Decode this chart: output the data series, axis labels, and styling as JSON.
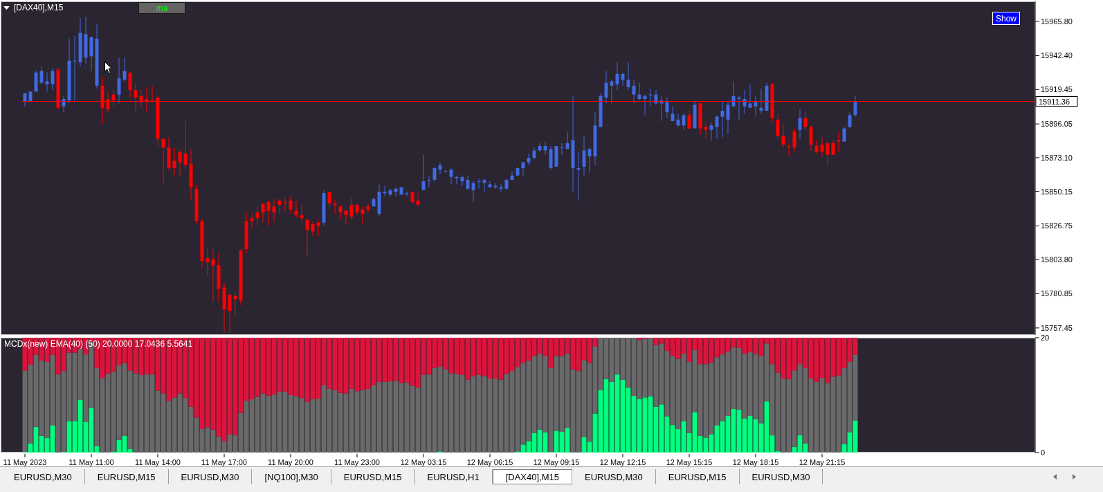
{
  "chart_data": [
    {
      "type": "candlestick",
      "title": "[DAX40],M15",
      "tick_labels": "y",
      "categories": [
        null,
        null,
        null,
        null,
        null,
        null,
        null,
        null,
        null,
        null,
        null,
        null,
        null,
        null,
        null,
        null,
        null,
        null,
        null,
        null,
        null,
        null,
        null,
        null,
        null,
        null,
        null,
        null,
        null,
        null,
        null,
        null,
        null,
        null,
        null,
        null,
        null,
        null,
        null,
        null,
        null,
        null,
        null,
        null,
        null,
        null,
        null,
        null,
        null,
        null,
        null,
        null,
        null,
        null,
        null,
        null,
        null,
        null,
        null,
        null,
        null,
        null,
        null,
        null,
        null,
        null,
        null,
        null,
        null,
        null,
        null,
        null,
        null,
        null,
        null,
        null,
        null,
        null,
        null,
        null,
        null,
        null,
        null,
        null,
        null,
        null,
        null,
        null,
        null,
        null,
        null,
        null,
        null,
        null,
        null,
        null,
        null,
        null,
        null,
        null,
        null,
        null,
        null,
        null,
        null,
        null,
        null,
        null,
        null,
        null,
        null,
        null,
        null,
        null,
        null,
        null,
        null,
        null,
        null,
        null,
        null,
        null,
        null,
        null,
        null,
        null,
        null,
        null,
        null,
        null,
        null,
        null,
        null,
        null,
        null,
        null,
        null,
        null,
        null,
        null,
        null,
        null,
        null,
        null,
        null,
        null,
        null,
        null,
        null,
        null,
        null,
        null,
        null,
        null,
        null,
        null,
        null,
        null,
        null,
        null,
        null,
        null,
        null,
        null,
        null,
        null,
        null,
        null,
        null,
        null,
        null,
        null,
        null,
        null,
        null,
        null,
        null,
        null,
        null,
        null,
        null,
        null,
        null
      ],
      "ohlc": [
        [
          15911,
          15917,
          15908,
          15917
        ],
        [
          15911,
          15918,
          15911,
          15918
        ],
        [
          15918,
          15932,
          15918,
          15931
        ],
        [
          15924,
          15935,
          15923,
          15932
        ],
        [
          15923,
          15931,
          15918,
          15925
        ],
        [
          15923,
          15934,
          15919,
          15932
        ],
        [
          15933,
          15934,
          15906,
          15907
        ],
        [
          15908,
          15915,
          15904,
          15913
        ],
        [
          15912,
          15954,
          15910,
          15939
        ],
        [
          15939,
          15956,
          15911,
          15939
        ],
        [
          15938,
          15968,
          15935,
          15958
        ],
        [
          15941,
          15969,
          15937,
          15957
        ],
        [
          15942,
          15955,
          15932,
          15955
        ],
        [
          15922,
          15964,
          15920,
          15954
        ],
        [
          15922,
          15928,
          15896,
          15907
        ],
        [
          15913,
          15918,
          15904,
          15906
        ],
        [
          15916,
          15920,
          15908,
          15912
        ],
        [
          15916,
          15941,
          15910,
          15927
        ],
        [
          15926,
          15941,
          15925,
          15932
        ],
        [
          15931,
          15931,
          15914,
          15919
        ],
        [
          15919,
          15924,
          15904,
          15914
        ],
        [
          15915,
          15919,
          15908,
          15911
        ],
        [
          15913,
          15921,
          15904,
          15911
        ],
        [
          15912,
          15922,
          15911,
          15912
        ],
        [
          15914,
          15916,
          15881,
          15886
        ],
        [
          15886,
          15886,
          15855,
          15880
        ],
        [
          15880,
          15887,
          15865,
          15866
        ],
        [
          15871,
          15880,
          15861,
          15866
        ],
        [
          15877,
          15879,
          15860,
          15870
        ],
        [
          15876,
          15898,
          15865,
          15868
        ],
        [
          15869,
          15879,
          15844,
          15853
        ],
        [
          15852,
          15855,
          15828,
          15830
        ],
        [
          15830,
          15832,
          15799,
          15803
        ],
        [
          15805,
          15812,
          15793,
          15802
        ],
        [
          15804,
          15811,
          15775,
          15800
        ],
        [
          15800,
          15808,
          15775,
          15784
        ],
        [
          15785,
          15788,
          15755,
          15770
        ],
        [
          15780,
          15781,
          15754,
          15769
        ],
        [
          15779,
          15782,
          15766,
          15777
        ],
        [
          15810,
          15811,
          15773,
          15776
        ],
        [
          15830,
          15836,
          15808,
          15811
        ],
        [
          15832,
          15835,
          15825,
          15830
        ],
        [
          15836,
          15840,
          15827,
          15832
        ],
        [
          15842,
          15842,
          15829,
          15836
        ],
        [
          15843,
          15844,
          15827,
          15837
        ],
        [
          15840,
          15845,
          15829,
          15836
        ],
        [
          15844,
          15845,
          15835,
          15841
        ],
        [
          15843,
          15846,
          15837,
          15843
        ],
        [
          15844,
          15847,
          15835,
          15838
        ],
        [
          15837,
          15844,
          15832,
          15834
        ],
        [
          15834,
          15841,
          15829,
          15832
        ],
        [
          15831,
          15831,
          15806,
          15824
        ],
        [
          15828,
          15830,
          15820,
          15823
        ],
        [
          15829,
          15831,
          15820,
          15827
        ],
        [
          15829,
          15851,
          15827,
          15849
        ],
        [
          15850,
          15850,
          15838,
          15842
        ],
        [
          15842,
          15845,
          15835,
          15841
        ],
        [
          15840,
          15841,
          15831,
          15836
        ],
        [
          15837,
          15838,
          15828,
          15834
        ],
        [
          15841,
          15846,
          15831,
          15833
        ],
        [
          15841,
          15842,
          15834,
          15836
        ],
        [
          15838,
          15840,
          15828,
          15835
        ],
        [
          15840,
          15842,
          15836,
          15838
        ],
        [
          15840,
          15846,
          15840,
          15845
        ],
        [
          15835,
          15855,
          15833,
          15850
        ],
        [
          15849,
          15854,
          15847,
          15850
        ],
        [
          15848,
          15852,
          15847,
          15851
        ],
        [
          15850,
          15853,
          15847,
          15852
        ],
        [
          15848,
          15853,
          15848,
          15853
        ],
        [
          15849,
          15850,
          15847,
          15849
        ],
        [
          15850,
          15850,
          15842,
          15843
        ],
        [
          15844,
          15849,
          15841,
          15841
        ],
        [
          15851,
          15875,
          15851,
          15857
        ],
        [
          15858,
          15861,
          15853,
          15858
        ],
        [
          15858,
          15867,
          15857,
          15866
        ],
        [
          15865,
          15870,
          15862,
          15868
        ],
        [
          15864,
          15865,
          15863,
          15864
        ],
        [
          15860,
          15866,
          15855,
          15865
        ],
        [
          15859,
          15861,
          15855,
          15860
        ],
        [
          15857,
          15861,
          15854,
          15860
        ],
        [
          15852,
          15861,
          15851,
          15858
        ],
        [
          15851,
          15857,
          15843,
          15856
        ],
        [
          15857,
          15859,
          15852,
          15857
        ],
        [
          15856,
          15859,
          15850,
          15858
        ],
        [
          15853,
          15857,
          15853,
          15855
        ],
        [
          15853,
          15856,
          15852,
          15854
        ],
        [
          15852,
          15855,
          15850,
          15853
        ],
        [
          15852,
          15859,
          15851,
          15858
        ],
        [
          15858,
          15864,
          15858,
          15861
        ],
        [
          15861,
          15867,
          15861,
          15866
        ],
        [
          15866,
          15870,
          15861,
          15870
        ],
        [
          15870,
          15876,
          15868,
          15873
        ],
        [
          15873,
          15880,
          15872,
          15878
        ],
        [
          15878,
          15883,
          15877,
          15881
        ],
        [
          15878,
          15884,
          15875,
          15881
        ],
        [
          15866,
          15881,
          15865,
          15879
        ],
        [
          15867,
          15881,
          15867,
          15881
        ],
        [
          15880,
          15883,
          15875,
          15880
        ],
        [
          15879,
          15891,
          15879,
          15883
        ],
        [
          15866,
          15915,
          15850,
          15885
        ],
        [
          15865,
          15877,
          15844,
          15866
        ],
        [
          15867,
          15888,
          15861,
          15878
        ],
        [
          15874,
          15880,
          15863,
          15879
        ],
        [
          15874,
          15904,
          15868,
          15895
        ],
        [
          15894,
          15917,
          15894,
          15915
        ],
        [
          15914,
          15932,
          15910,
          15924
        ],
        [
          15922,
          15926,
          15910,
          15925
        ],
        [
          15923,
          15938,
          15919,
          15930
        ],
        [
          15926,
          15931,
          15922,
          15930
        ],
        [
          15921,
          15938,
          15919,
          15926
        ],
        [
          15916,
          15926,
          15910,
          15922
        ],
        [
          15913,
          15924,
          15912,
          15916
        ],
        [
          15913,
          15916,
          15902,
          15915
        ],
        [
          15916,
          15920,
          15908,
          15916
        ],
        [
          15910,
          15919,
          15909,
          15916
        ],
        [
          15910,
          15915,
          15898,
          15912
        ],
        [
          15904,
          15914,
          15900,
          15911
        ],
        [
          15898,
          15908,
          15898,
          15903
        ],
        [
          15895,
          15903,
          15894,
          15899
        ],
        [
          15895,
          15903,
          15892,
          15902
        ],
        [
          15902,
          15905,
          15892,
          15893
        ],
        [
          15893,
          15912,
          15893,
          15909
        ],
        [
          15910,
          15911,
          15889,
          15893
        ],
        [
          15894,
          15897,
          15886,
          15892
        ],
        [
          15892,
          15897,
          15885,
          15895
        ],
        [
          15894,
          15902,
          15886,
          15901
        ],
        [
          15901,
          15912,
          15887,
          15905
        ],
        [
          15899,
          15911,
          15889,
          15909
        ],
        [
          15908,
          15925,
          15907,
          15915
        ],
        [
          15913,
          15915,
          15899,
          15914
        ],
        [
          15908,
          15919,
          15903,
          15913
        ],
        [
          15907,
          15923,
          15907,
          15910
        ],
        [
          15908,
          15915,
          15901,
          15911
        ],
        [
          15905,
          15920,
          15903,
          15907
        ],
        [
          15905,
          15924,
          15905,
          15922
        ],
        [
          15923,
          15924,
          15897,
          15900
        ],
        [
          15899,
          15903,
          15886,
          15888
        ],
        [
          15888,
          15896,
          15880,
          15882
        ],
        [
          15881,
          15883,
          15874,
          15881
        ],
        [
          15891,
          15893,
          15877,
          15880
        ],
        [
          15892,
          15906,
          15886,
          15900
        ],
        [
          15900,
          15904,
          15892,
          15894
        ],
        [
          15894,
          15895,
          15878,
          15882
        ],
        [
          15881,
          15885,
          15876,
          15877
        ],
        [
          15882,
          15887,
          15874,
          15877
        ],
        [
          15883,
          15884,
          15868,
          15875
        ],
        [
          15883,
          15885,
          15875,
          15875
        ],
        [
          15885,
          15891,
          15877,
          15884
        ],
        [
          15884,
          15894,
          15884,
          15893
        ],
        [
          15894,
          15904,
          15893,
          15902
        ],
        [
          15902,
          15915,
          15901,
          15911
        ],
        null,
        null,
        null,
        null,
        null,
        null,
        null,
        null,
        null,
        null,
        null,
        null,
        null,
        null,
        null,
        null,
        null,
        null,
        null,
        null,
        null,
        null,
        null,
        null,
        null,
        null,
        null,
        null,
        null,
        null,
        null,
        null
      ],
      "colors": [
        "#4169e1",
        "#4169e1",
        "#4169e1",
        "#4169e1",
        "#4169e1",
        "#4169e1",
        "#ff0000",
        "#4169e1",
        "#4169e1",
        "#4169e1",
        "#4169e1",
        "#4169e1",
        "#4169e1",
        "#4169e1",
        "#ff0000",
        "#ff0000",
        "#ff0000",
        "#4169e1",
        "#4169e1",
        "#ff0000",
        "#ff0000",
        "#ff0000",
        "#ff0000",
        "#ff0000",
        "#ff0000",
        "#ff0000",
        "#ff0000",
        "#ff0000",
        "#ff0000",
        "#ff0000",
        "#ff0000",
        "#ff0000",
        "#ff0000",
        "#ff0000",
        "#ff0000",
        "#ff0000",
        "#ff0000",
        "#ff0000",
        "#ff0000",
        "#ff0000",
        "#ff0000",
        "#ff0000",
        "#ff0000",
        "#ff0000",
        "#ff0000",
        "#ff0000",
        "#ff0000",
        "#ff0000",
        "#ff0000",
        "#ff0000",
        "#ff0000",
        "#ff0000",
        "#ff0000",
        "#ff0000",
        "#4169e1",
        "#ff0000",
        "#ff0000",
        "#ff0000",
        "#ff0000",
        "#ff0000",
        "#ff0000",
        "#ff0000",
        "#ff0000",
        "#4169e1",
        "#4169e1",
        "#4169e1",
        "#4169e1",
        "#4169e1",
        "#4169e1",
        "#4169e1",
        "#ff0000",
        "#ff0000",
        "#4169e1",
        "#4169e1",
        "#4169e1",
        "#4169e1",
        "#4169e1",
        "#4169e1",
        "#4169e1",
        "#4169e1",
        "#4169e1",
        "#4169e1",
        "#4169e1",
        "#4169e1",
        "#4169e1",
        "#4169e1",
        "#4169e1",
        "#4169e1",
        "#4169e1",
        "#4169e1",
        "#4169e1",
        "#4169e1",
        "#4169e1",
        "#4169e1",
        "#4169e1",
        "#4169e1",
        "#4169e1",
        "#4169e1",
        "#4169e1",
        "#4169e1",
        "#4169e1",
        "#4169e1",
        "#4169e1",
        "#4169e1",
        "#4169e1",
        "#4169e1",
        "#4169e1",
        "#4169e1",
        "#4169e1",
        "#4169e1",
        "#4169e1",
        "#4169e1",
        "#4169e1",
        "#4169e1",
        "#4169e1",
        "#4169e1",
        "#4169e1",
        "#4169e1",
        "#4169e1",
        "#4169e1",
        "#ff0000",
        "#4169e1",
        "#ff0000",
        "#ff0000",
        "#4169e1",
        "#4169e1",
        "#4169e1",
        "#4169e1",
        "#4169e1",
        "#4169e1",
        "#4169e1",
        "#4169e1",
        "#4169e1",
        "#4169e1",
        "#4169e1",
        "#ff0000",
        "#ff0000",
        "#ff0000",
        "#ff0000",
        "#ff0000",
        "#4169e1",
        "#ff0000",
        "#ff0000",
        "#ff0000",
        "#ff0000",
        "#ff0000",
        "#ff0000",
        "#ff0000",
        "#4169e1",
        "#4169e1",
        "#4169e1",
        null,
        null,
        null,
        null,
        null,
        null,
        null,
        null,
        null,
        null,
        null,
        null,
        null,
        null,
        null,
        null,
        null,
        null,
        null,
        null,
        null,
        null,
        null,
        null,
        null,
        null,
        null,
        null,
        null,
        null,
        null,
        null
      ],
      "ylim": [
        15752.7,
        15979.3
      ],
      "yticks": [
        {
          "value": 15757.45,
          "label": "15757.45"
        },
        {
          "value": 15780.85,
          "label": "15780.85"
        },
        {
          "value": 15803.8,
          "label": "15803.80"
        },
        {
          "value": 15826.75,
          "label": "15826.75"
        },
        {
          "value": 15850.15,
          "label": "15850.15"
        },
        {
          "value": 15873.1,
          "label": "15873.10"
        },
        {
          "value": 15896.05,
          "label": "15896.05"
        },
        {
          "value": 15919.45,
          "label": "15919.45"
        },
        {
          "value": 15942.4,
          "label": "15942.40"
        },
        {
          "value": 15965.8,
          "label": "15965.80"
        }
      ],
      "ref_lines": [
        {
          "axis": "y",
          "value": 15911.36,
          "label": "15911.36",
          "color": "#ff0000"
        }
      ],
      "annotations": [
        "ma",
        "Show"
      ]
    },
    {
      "type": "bar",
      "title": "MCDx(new) EMA(40) (50) 20.0000 17.0436 5.5641",
      "stacked": true,
      "categories": [
        "11 May 2023",
        null,
        null,
        null,
        null,
        null,
        null,
        null,
        null,
        null,
        null,
        null,
        "11 May 11:00",
        null,
        null,
        null,
        null,
        null,
        null,
        null,
        null,
        null,
        null,
        null,
        "11 May 14:00",
        null,
        null,
        null,
        null,
        null,
        null,
        null,
        null,
        null,
        null,
        null,
        "11 May 17:00",
        null,
        null,
        null,
        null,
        null,
        null,
        null,
        null,
        null,
        null,
        null,
        "11 May 20:00",
        null,
        null,
        null,
        null,
        null,
        null,
        null,
        null,
        null,
        null,
        null,
        "11 May 23:00",
        null,
        null,
        null,
        null,
        null,
        null,
        null,
        null,
        null,
        null,
        null,
        "12 May 03:15",
        null,
        null,
        null,
        null,
        null,
        null,
        null,
        null,
        null,
        null,
        null,
        "12 May 06:15",
        null,
        null,
        null,
        null,
        null,
        null,
        null,
        null,
        null,
        null,
        null,
        "12 May 09:15",
        null,
        null,
        null,
        null,
        null,
        null,
        null,
        null,
        null,
        null,
        null,
        "12 May 12:15",
        null,
        null,
        null,
        null,
        null,
        null,
        null,
        null,
        null,
        null,
        null,
        "12 May 15:15",
        null,
        null,
        null,
        null,
        null,
        null,
        null,
        null,
        null,
        null,
        null,
        "12 May 18:15",
        null,
        null,
        null,
        null,
        null,
        null,
        null,
        null,
        null,
        null,
        null,
        "12 May 21:15",
        null,
        null,
        null,
        null,
        null,
        null,
        null,
        null,
        null,
        null,
        null,
        null,
        null,
        null,
        null,
        null,
        null,
        null,
        null,
        null,
        null,
        null,
        null,
        null,
        null,
        null,
        null,
        null,
        null,
        null,
        null,
        null,
        null,
        null,
        null,
        null,
        null,
        null
      ],
      "series": [
        {
          "color": "#00ff7f",
          "values": [
            0.1,
            1.6,
            4.5,
            2.9,
            2.6,
            4.7,
            0,
            0.1,
            5.5,
            5.5,
            9.2,
            5.3,
            7.8,
            1.1,
            0,
            0,
            0.2,
            2.2,
            2.9,
            0.6,
            0,
            0,
            0,
            0,
            0,
            0,
            0,
            0,
            0,
            0,
            0,
            0,
            0,
            0,
            0,
            0,
            0,
            0,
            0,
            0,
            0,
            0,
            0,
            0,
            0,
            0,
            0,
            0,
            0,
            0,
            0,
            0,
            0,
            0,
            0,
            0,
            0,
            0,
            0,
            0,
            0,
            0,
            0,
            0,
            0,
            0,
            0,
            0,
            0,
            0,
            0,
            0,
            0,
            0,
            0,
            0.2,
            0,
            0,
            0,
            0,
            0,
            0,
            0,
            0,
            0,
            0,
            0,
            0,
            0,
            0.2,
            1.4,
            2.0,
            3.4,
            4.0,
            3.5,
            0.1,
            3.8,
            3.6,
            4.3,
            0,
            0,
            2.7,
            1.9,
            6.8,
            10.9,
            12.8,
            12.3,
            13.6,
            12.7,
            11.3,
            9.9,
            9.3,
            9.6,
            9.8,
            8.0,
            8.4,
            6.3,
            4.8,
            4.1,
            5.5,
            3.4,
            7.0,
            2.9,
            2.6,
            3.2,
            4.7,
            5.5,
            6.4,
            7.6,
            7.5,
            5.9,
            6.4,
            5.8,
            5.1,
            8.9,
            3.0,
            0.3,
            0,
            0,
            1.0,
            3.0,
            1.6,
            0,
            0,
            0,
            0,
            0,
            0,
            1.5,
            3.5,
            5.6,
            null,
            null,
            null,
            null,
            null,
            null,
            null,
            null,
            null,
            null,
            null,
            null,
            null,
            null,
            null,
            null,
            null,
            null,
            null,
            null,
            null,
            null,
            null,
            null,
            null,
            null,
            null,
            null,
            null,
            null,
            null,
            null
          ]
        },
        {
          "color": "#696969",
          "values": [
            14.2,
            13.7,
            12.5,
            13.1,
            13.2,
            12.3,
            13.6,
            14.1,
            11.9,
            11.9,
            8.8,
            11.8,
            11.5,
            13.6,
            13.0,
            13.7,
            13.9,
            13.0,
            12.7,
            13.7,
            13.8,
            13.5,
            13.6,
            13.6,
            10.8,
            10.3,
            9.0,
            9.6,
            10.3,
            9.5,
            8.0,
            6.1,
            4.1,
            4.4,
            4.0,
            2.8,
            2.0,
            3.2,
            3.0,
            6.9,
            9.0,
            9.3,
            9.7,
            10.3,
            9.9,
            10.1,
            10.6,
            10.6,
            10.0,
            9.8,
            9.5,
            8.8,
            9.3,
            9.4,
            11.7,
            11.1,
            10.9,
            10.4,
            10.3,
            11.1,
            10.7,
            10.9,
            11.1,
            11.7,
            12.3,
            12.3,
            12.4,
            12.5,
            12.1,
            12.2,
            11.6,
            11.3,
            13.5,
            13.6,
            14.7,
            14.8,
            14.5,
            13.8,
            13.7,
            13.5,
            12.7,
            13.3,
            13.5,
            13.3,
            12.9,
            12.9,
            12.7,
            13.7,
            14.2,
            14.7,
            14.2,
            14.0,
            13.4,
            13.2,
            13.3,
            14.6,
            13.0,
            13.2,
            12.9,
            14.5,
            14.2,
            13.4,
            13.7,
            11.7,
            9.1,
            7.2,
            7.7,
            6.4,
            7.3,
            8.7,
            10.1,
            10.3,
            10.2,
            10.1,
            10.7,
            10.6,
            11.4,
            12.0,
            12.2,
            11.7,
            12.4,
            10.9,
            12.5,
            12.8,
            12.5,
            11.9,
            11.6,
            11.2,
            10.7,
            10.7,
            11.3,
            11.1,
            11.4,
            11.7,
            10.1,
            12.4,
            13.6,
            12.9,
            12.8,
            13.3,
            12.4,
            13.1,
            12.9,
            12.3,
            13.0,
            12.1,
            13.2,
            13.4,
            13.2,
            12.3,
            11.4,
            null,
            null,
            null,
            null,
            null,
            null,
            null,
            null,
            null,
            null,
            null,
            null,
            null,
            null,
            null,
            null,
            null,
            null,
            null,
            null,
            null,
            null,
            null,
            null,
            null,
            null,
            null,
            null,
            null,
            null,
            null,
            null
          ]
        },
        {
          "color": "#dc143c",
          "values": [
            5.7,
            4.7,
            3.0,
            4.0,
            4.2,
            3.0,
            6.4,
            5.8,
            2.6,
            2.6,
            2.0,
            2.9,
            0.7,
            5.3,
            7.0,
            6.3,
            5.9,
            4.8,
            4.4,
            5.7,
            6.2,
            6.5,
            6.4,
            6.4,
            9.2,
            9.7,
            11.0,
            10.4,
            9.7,
            10.5,
            12.0,
            13.9,
            15.9,
            15.6,
            16.0,
            17.2,
            18.0,
            16.8,
            17.0,
            13.1,
            11.0,
            10.7,
            10.3,
            9.7,
            10.1,
            9.9,
            9.4,
            9.4,
            10.0,
            10.2,
            10.5,
            11.2,
            10.7,
            10.6,
            8.3,
            8.9,
            9.1,
            9.6,
            9.7,
            8.9,
            9.3,
            9.1,
            8.9,
            8.3,
            7.7,
            7.7,
            7.6,
            7.5,
            7.9,
            7.8,
            8.4,
            8.7,
            6.5,
            6.4,
            5.3,
            5.0,
            5.5,
            6.2,
            6.3,
            6.5,
            7.3,
            6.7,
            6.5,
            6.7,
            7.1,
            7.1,
            7.3,
            6.3,
            5.8,
            5.1,
            4.4,
            4.0,
            3.2,
            2.8,
            3.2,
            5.3,
            3.2,
            3.2,
            2.8,
            5.5,
            5.8,
            3.9,
            4.4,
            1.5,
            0,
            0,
            0,
            0,
            0,
            0,
            0,
            0.4,
            0.2,
            0.1,
            1.3,
            1.0,
            2.3,
            3.2,
            3.7,
            2.8,
            4.2,
            2.1,
            4.6,
            4.6,
            4.3,
            3.4,
            2.9,
            2.4,
            1.7,
            1.8,
            2.8,
            2.5,
            2.8,
            3.2,
            1.0,
            4.6,
            6.1,
            7.1,
            7.2,
            5.7,
            4.6,
            5.3,
            7.1,
            7.7,
            7.0,
            7.9,
            6.8,
            6.6,
            5.3,
            4.2,
            3.0,
            null,
            null,
            null,
            null,
            null,
            null,
            null,
            null,
            null,
            null,
            null,
            null,
            null,
            null,
            null,
            null,
            null,
            null,
            null,
            null,
            null,
            null,
            null,
            null,
            null,
            null,
            null,
            null,
            null,
            null,
            null,
            null
          ]
        }
      ],
      "ylim": [
        0,
        20
      ],
      "yticks": [
        0,
        20
      ],
      "annotations": [
        "EURUSD,M30",
        "EURUSD,M15",
        "EURUSD,M30",
        "[NQ100],M30",
        "EURUSD,M15",
        "EURUSD,H1",
        "[DAX40],M15",
        "EURUSD,M30",
        "EURUSD,M15",
        "EURUSD,M30"
      ]
    }
  ]
}
